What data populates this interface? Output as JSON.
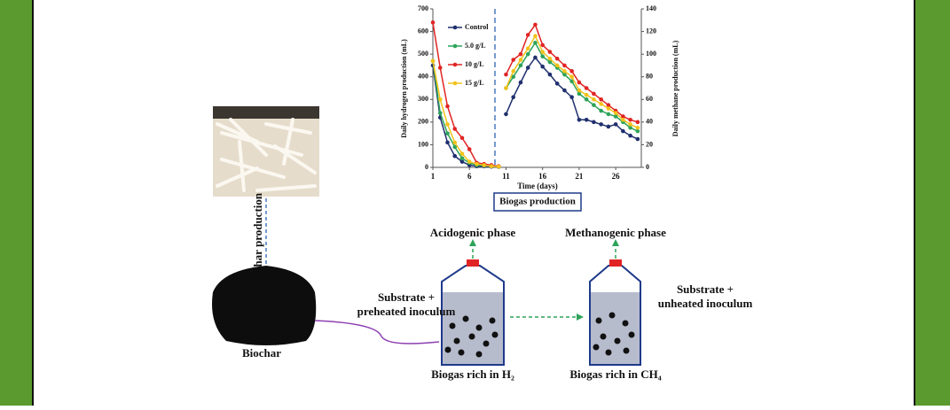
{
  "chart_data": {
    "type": "line",
    "x_label": "Time (days)",
    "y_label": "Daily hydrogen production (mL)",
    "y2_label": "Daily methane production (mL)",
    "caption": "Biogas production",
    "x": [
      1,
      2,
      3,
      4,
      5,
      6,
      7,
      8,
      9,
      10,
      11,
      12,
      13,
      14,
      15,
      16,
      17,
      18,
      19,
      20,
      21,
      22,
      23,
      24,
      25,
      26,
      27,
      28,
      29
    ],
    "xlim": [
      1,
      29.5
    ],
    "xticks": [
      1,
      6,
      11,
      16,
      21,
      26
    ],
    "ylim": [
      0,
      700
    ],
    "yticks": [
      0,
      100,
      200,
      300,
      400,
      500,
      600,
      700
    ],
    "y2lim": [
      0,
      140
    ],
    "y2ticks": [
      0,
      20,
      40,
      60,
      80,
      100,
      120,
      140
    ],
    "series": [
      {
        "name": "Control",
        "color": "#1f2f6e",
        "values": [
          450,
          220,
          110,
          50,
          25,
          10,
          5,
          5,
          3,
          2,
          null,
          null,
          null,
          null,
          null,
          null,
          null,
          null,
          null,
          null,
          null,
          null,
          null,
          null,
          null,
          null,
          null,
          null,
          null
        ],
        "y2_values": [
          null,
          null,
          null,
          null,
          null,
          null,
          null,
          null,
          null,
          null,
          47,
          62,
          75,
          88,
          97,
          89,
          82,
          74,
          68,
          62,
          42,
          42,
          40,
          38,
          36,
          38,
          32,
          28,
          25
        ]
      },
      {
        "name": "5.0 g/L",
        "color": "#2ea35a",
        "values": [
          470,
          240,
          150,
          90,
          40,
          20,
          10,
          8,
          5,
          3,
          null,
          null,
          null,
          null,
          null,
          null,
          null,
          null,
          null,
          null,
          null,
          null,
          null,
          null,
          null,
          null,
          null,
          null,
          null
        ],
        "y2_values": [
          null,
          null,
          null,
          null,
          null,
          null,
          null,
          null,
          null,
          null,
          70,
          80,
          90,
          100,
          110,
          98,
          93,
          88,
          82,
          76,
          65,
          60,
          55,
          50,
          47,
          45,
          40,
          35,
          32
        ]
      },
      {
        "name": "10 g/L",
        "color": "#e02424",
        "values": [
          640,
          440,
          270,
          170,
          130,
          80,
          20,
          15,
          10,
          5,
          null,
          null,
          null,
          null,
          null,
          null,
          null,
          null,
          null,
          null,
          null,
          null,
          null,
          null,
          null,
          null,
          null,
          null,
          null
        ],
        "y2_values": [
          null,
          null,
          null,
          null,
          null,
          null,
          null,
          null,
          null,
          null,
          82,
          95,
          100,
          117,
          126,
          108,
          102,
          96,
          90,
          85,
          75,
          70,
          65,
          60,
          55,
          50,
          45,
          42,
          40
        ]
      },
      {
        "name": "15 g/L",
        "color": "#f2c21b",
        "values": [
          470,
          300,
          190,
          110,
          60,
          25,
          15,
          10,
          5,
          3,
          null,
          null,
          null,
          null,
          null,
          null,
          null,
          null,
          null,
          null,
          null,
          null,
          null,
          null,
          null,
          null,
          null,
          null,
          null
        ],
        "y2_values": [
          null,
          null,
          null,
          null,
          null,
          null,
          null,
          null,
          null,
          null,
          70,
          85,
          95,
          105,
          116,
          102,
          96,
          90,
          85,
          80,
          68,
          64,
          60,
          56,
          52,
          48,
          42,
          38,
          35
        ]
      }
    ]
  },
  "diagram": {
    "biochar_production": "Biochar production",
    "biochar": "Biochar",
    "acidogenic_phase": "Acidogenic phase",
    "methanogenic_phase": "Methanogenic phase",
    "substrate_1": [
      "Substrate +",
      "preheated inoculum"
    ],
    "substrate_2": [
      "Substrate +",
      "unheated inoculum"
    ],
    "gas_1": "Biogas rich in H₂",
    "gas_2": "Biogas rich in CH₄"
  }
}
